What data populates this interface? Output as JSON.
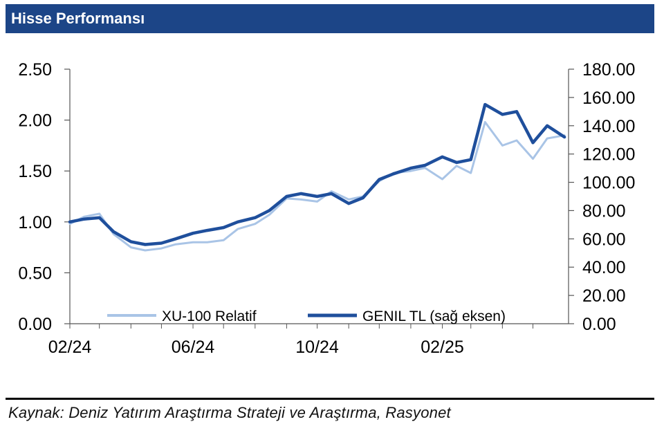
{
  "header": {
    "title": "Hisse Performansı"
  },
  "source": {
    "text": "Kaynak: Deniz Yatırım Araştırma Strateji ve Araştırma, Rasyonet"
  },
  "colors": {
    "header_bg": "#1c4587",
    "relative_series": "#a9c4e6",
    "price_series": "#1f4f9c"
  },
  "chart_data": {
    "type": "line",
    "title": "Hisse Performansı",
    "x_ticks": [
      "02/24",
      "06/24",
      "10/24",
      "02/25"
    ],
    "y_left": {
      "lim": [
        0,
        2.5
      ],
      "ticks": [
        "0.00",
        "0.50",
        "1.00",
        "1.50",
        "2.00",
        "2.50"
      ]
    },
    "y_right": {
      "lim": [
        0,
        180
      ],
      "ticks": [
        "0.00",
        "20.00",
        "40.00",
        "60.00",
        "80.00",
        "100.00",
        "120.00",
        "140.00",
        "160.00",
        "180.00"
      ]
    },
    "legend_position": "bottom",
    "grid": false,
    "series": [
      {
        "name": "XU-100 Relatif",
        "axis": "left",
        "x": [
          "2024-02-01",
          "2024-02-15",
          "2024-03-01",
          "2024-03-15",
          "2024-04-01",
          "2024-04-15",
          "2024-05-01",
          "2024-05-15",
          "2024-06-01",
          "2024-06-15",
          "2024-07-01",
          "2024-07-15",
          "2024-08-01",
          "2024-08-15",
          "2024-09-01",
          "2024-09-15",
          "2024-10-01",
          "2024-10-15",
          "2024-11-01",
          "2024-11-15",
          "2024-12-01",
          "2024-12-15",
          "2025-01-01",
          "2025-01-15",
          "2025-02-01",
          "2025-02-15",
          "2025-03-01",
          "2025-03-15",
          "2025-04-01",
          "2025-04-15",
          "2025-05-01",
          "2025-05-15",
          "2025-06-01"
        ],
        "values": [
          0.98,
          1.05,
          1.08,
          0.88,
          0.75,
          0.72,
          0.74,
          0.78,
          0.8,
          0.8,
          0.82,
          0.93,
          0.98,
          1.07,
          1.23,
          1.22,
          1.2,
          1.3,
          1.22,
          1.25,
          1.4,
          1.48,
          1.5,
          1.53,
          1.42,
          1.55,
          1.48,
          1.98,
          1.75,
          1.8,
          1.62,
          1.82,
          1.85
        ]
      },
      {
        "name": "GENIL TL (sağ eksen)",
        "axis": "right",
        "x": [
          "2024-02-01",
          "2024-02-15",
          "2024-03-01",
          "2024-03-15",
          "2024-04-01",
          "2024-04-15",
          "2024-05-01",
          "2024-05-15",
          "2024-06-01",
          "2024-06-15",
          "2024-07-01",
          "2024-07-15",
          "2024-08-01",
          "2024-08-15",
          "2024-09-01",
          "2024-09-15",
          "2024-10-01",
          "2024-10-15",
          "2024-11-01",
          "2024-11-15",
          "2024-12-01",
          "2024-12-15",
          "2025-01-01",
          "2025-01-15",
          "2025-02-01",
          "2025-02-15",
          "2025-03-01",
          "2025-03-15",
          "2025-04-01",
          "2025-04-15",
          "2025-05-01",
          "2025-05-15",
          "2025-06-01"
        ],
        "values": [
          72,
          74,
          75,
          65,
          58,
          56,
          57,
          60,
          64,
          66,
          68,
          72,
          75,
          80,
          90,
          92,
          90,
          92,
          85,
          89,
          102,
          106,
          110,
          112,
          118,
          114,
          116,
          155,
          148,
          150,
          128,
          140,
          132
        ]
      }
    ]
  }
}
